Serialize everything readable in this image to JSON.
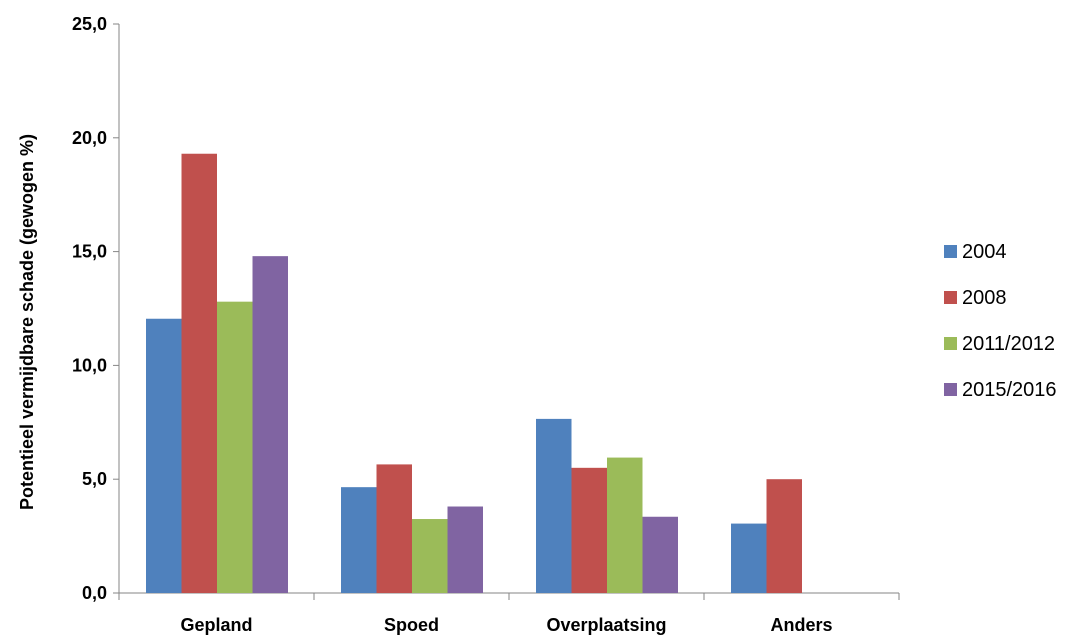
{
  "chart_data": {
    "type": "bar",
    "title": "",
    "xlabel": "",
    "ylabel": "Potentieel vermijdbare schade (gewogen %)",
    "ylim": [
      0,
      25
    ],
    "yticks": [
      "0,0",
      "5,0",
      "10,0",
      "15,0",
      "20,0",
      "25,0"
    ],
    "ytick_values": [
      0,
      5,
      10,
      15,
      20,
      25
    ],
    "grid": false,
    "legend_position": "right",
    "categories": [
      "Gepland",
      "Spoed",
      "Overplaatsing",
      "Anders"
    ],
    "series": [
      {
        "name": "2004",
        "color": "#4F81BD",
        "values": [
          12.05,
          4.65,
          7.65,
          3.05
        ]
      },
      {
        "name": "2008",
        "color": "#C0504D",
        "values": [
          19.3,
          5.65,
          5.5,
          5.0
        ]
      },
      {
        "name": "2011/2012",
        "color": "#9BBB59",
        "values": [
          12.8,
          3.25,
          5.95,
          null
        ]
      },
      {
        "name": "2015/2016",
        "color": "#8064A2",
        "values": [
          14.8,
          3.8,
          3.35,
          null
        ]
      }
    ]
  }
}
